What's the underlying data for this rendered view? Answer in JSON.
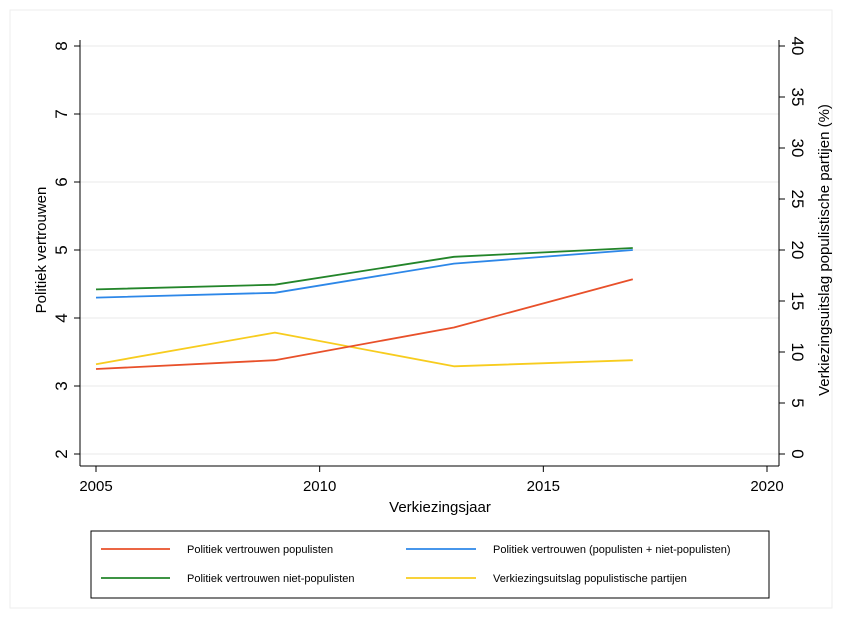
{
  "chart_data": {
    "type": "line",
    "title": "",
    "xlabel": "Verkiezingsjaar",
    "ylabel": "Politiek vertrouwen",
    "y2label": "Verkiezingsuitslag populistische partijen (%)",
    "xlim": [
      2005,
      2020
    ],
    "ylim": [
      2,
      8
    ],
    "y2lim": [
      0,
      40
    ],
    "x_ticks": [
      "2005",
      "2010",
      "2015",
      "2020"
    ],
    "y_ticks": [
      "2",
      "3",
      "4",
      "5",
      "6",
      "7",
      "8"
    ],
    "y2_ticks": [
      "0",
      "5",
      "10",
      "15",
      "20",
      "25",
      "30",
      "35",
      "40"
    ],
    "grid": true,
    "legend_position": "bottom",
    "x": [
      2005,
      2009,
      2013,
      2017
    ],
    "series": [
      {
        "name": "Politiek vertrouwen populisten",
        "axis": "left",
        "color": "#e8502a",
        "values": [
          3.25,
          3.38,
          3.86,
          4.57
        ]
      },
      {
        "name": "Politiek vertrouwen (populisten + niet-populisten)",
        "axis": "left",
        "color": "#2d87e8",
        "values": [
          4.3,
          4.37,
          4.8,
          5.0
        ]
      },
      {
        "name": "Politiek vertrouwen niet-populisten",
        "axis": "left",
        "color": "#23852a",
        "values": [
          4.42,
          4.49,
          4.9,
          5.03
        ]
      },
      {
        "name": "Verkiezingsuitslag populistische partijen",
        "axis": "right",
        "color": "#f7cc1e",
        "values": [
          8.8,
          11.9,
          8.6,
          9.2
        ]
      }
    ]
  }
}
